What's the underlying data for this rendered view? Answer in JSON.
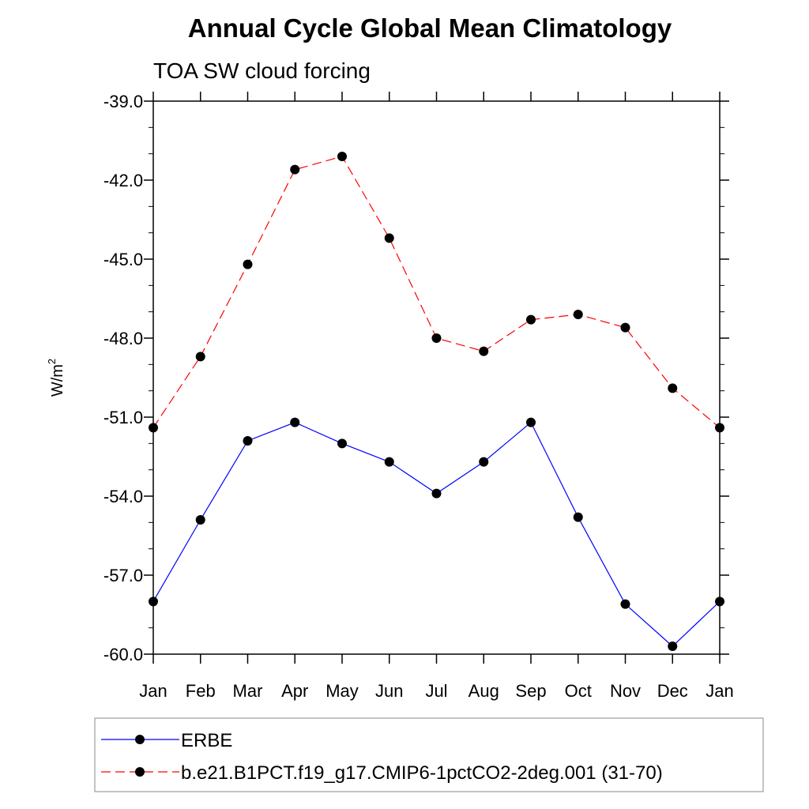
{
  "chart_data": {
    "type": "line",
    "title": "Annual Cycle Global Mean Climatology",
    "subtitle": "TOA SW cloud forcing",
    "ylabel": "W/m",
    "ylabel_superscript": "2",
    "ylim": [
      -60.0,
      -39.0
    ],
    "yticks": [
      "-39.0",
      "-42.0",
      "-45.0",
      "-48.0",
      "-51.0",
      "-54.0",
      "-57.0",
      "-60.0"
    ],
    "categories": [
      "Jan",
      "Feb",
      "Mar",
      "Apr",
      "May",
      "Jun",
      "Jul",
      "Aug",
      "Sep",
      "Oct",
      "Nov",
      "Dec",
      "Jan"
    ],
    "grid": false,
    "legend_position": "bottom",
    "series": [
      {
        "name": "ERBE",
        "color": "#0000ff",
        "dash": "solid",
        "marker": "filled-circle",
        "values": [
          -58.0,
          -54.9,
          -51.9,
          -51.2,
          -52.0,
          -52.7,
          -53.9,
          -52.7,
          -51.2,
          -54.8,
          -58.1,
          -59.7,
          -58.0
        ]
      },
      {
        "name": "b.e21.B1PCT.f19_g17.CMIP6-1pctCO2-2deg.001 (31-70)",
        "color": "#ff0000",
        "dash": "dashed",
        "marker": "filled-circle",
        "values": [
          -51.4,
          -48.7,
          -45.2,
          -41.6,
          -41.1,
          -44.2,
          -48.0,
          -48.5,
          -47.3,
          -47.1,
          -47.6,
          -49.9,
          -51.4
        ]
      }
    ]
  }
}
